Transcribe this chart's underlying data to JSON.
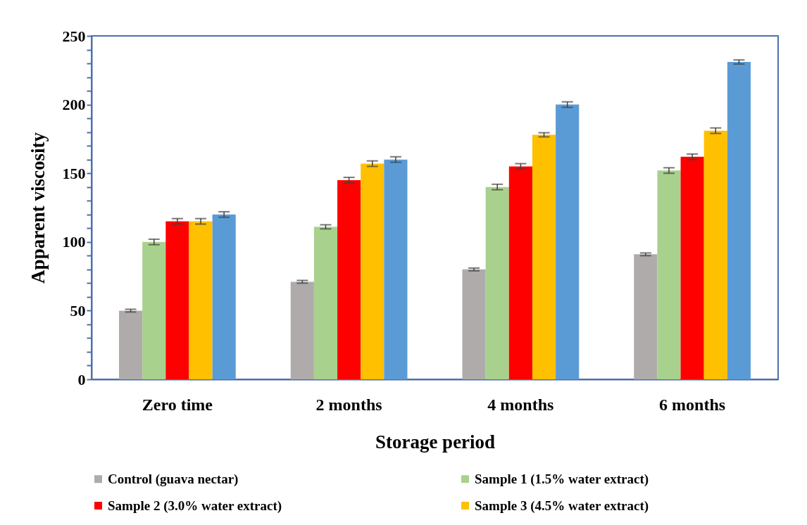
{
  "chart_data": {
    "type": "bar",
    "xlabel": "Storage period",
    "ylabel": "Apparent viscosity",
    "categories": [
      "Zero time",
      "2 months",
      "4 months",
      "6 months"
    ],
    "ylim": [
      0,
      250
    ],
    "yticks": [
      0,
      {
        "value": 10,
        "label": null
      },
      {
        "value": 20,
        "label": null
      },
      {
        "value": 30,
        "label": null
      },
      {
        "value": 40,
        "label": null
      },
      50,
      {
        "value": 60,
        "label": null
      },
      {
        "value": 70,
        "label": null
      },
      {
        "value": 80,
        "label": null
      },
      {
        "value": 90,
        "label": null
      },
      100,
      {
        "value": 110,
        "label": null
      },
      {
        "value": 120,
        "label": null
      },
      {
        "value": 130,
        "label": null
      },
      {
        "value": 140,
        "label": null
      },
      150,
      {
        "value": 160,
        "label": null
      },
      {
        "value": 170,
        "label": null
      },
      {
        "value": 180,
        "label": null
      },
      {
        "value": 190,
        "label": null
      },
      200,
      {
        "value": 210,
        "label": null
      },
      {
        "value": 220,
        "label": null
      },
      {
        "value": 230,
        "label": null
      },
      {
        "value": 240,
        "label": null
      },
      250
    ],
    "legend": "bottom",
    "series": [
      {
        "name": "Control (guava nectar)",
        "color": "#afabab",
        "values": [
          50,
          71,
          80,
          91
        ],
        "errors": [
          1,
          1,
          1,
          1
        ]
      },
      {
        "name": "Sample 1 (1.5% water extract)",
        "color": "#a9d18e",
        "values": [
          100,
          111,
          140,
          152
        ],
        "errors": [
          2,
          1.5,
          2,
          2
        ]
      },
      {
        "name": "Sample 2 (3.0% water extract)",
        "color": "#ff0000",
        "values": [
          115,
          145,
          155,
          162
        ],
        "errors": [
          2,
          2,
          2,
          2
        ]
      },
      {
        "name": "Sample 3 (4.5% water extract)",
        "color": "#ffc000",
        "values": [
          115,
          157,
          178,
          181
        ],
        "errors": [
          2,
          2,
          1.5,
          2
        ]
      },
      {
        "color": "#5b9bd5",
        "values": [
          120,
          160,
          200,
          231
        ],
        "errors": [
          2,
          2,
          2,
          1.5
        ]
      }
    ]
  }
}
